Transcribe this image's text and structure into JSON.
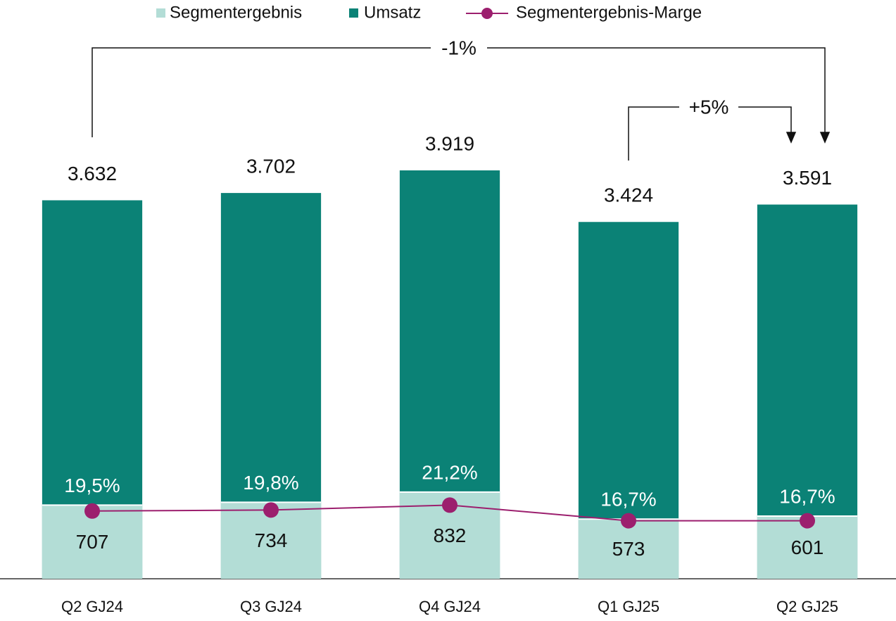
{
  "chart_data": {
    "type": "bar",
    "categories": [
      "Q2 GJ24",
      "Q3 GJ24",
      "Q4 GJ24",
      "Q1 GJ25",
      "Q2 GJ25"
    ],
    "series": [
      {
        "name": "Segmentergebnis",
        "color": "#b3ddd6",
        "values": [
          707,
          734,
          832,
          573,
          601
        ]
      },
      {
        "name": "Umsatz",
        "color": "#0b8276",
        "values": [
          3632,
          3702,
          3919,
          3424,
          3591
        ],
        "value_labels": [
          "3.632",
          "3.702",
          "3.919",
          "3.424",
          "3.591"
        ]
      },
      {
        "name": "Segmentergebnis-Marge",
        "color": "#9c1f6e",
        "axis": "y2",
        "values": [
          19.5,
          19.8,
          21.2,
          16.7,
          16.7
        ],
        "value_labels": [
          "19,5%",
          "19,8%",
          "21,2%",
          "16,7%",
          "16,7%"
        ]
      }
    ],
    "ylim": [
      0,
      4000
    ],
    "y2lim": [
      0,
      120
    ],
    "annotations": [
      "-1%",
      "+5%"
    ]
  }
}
